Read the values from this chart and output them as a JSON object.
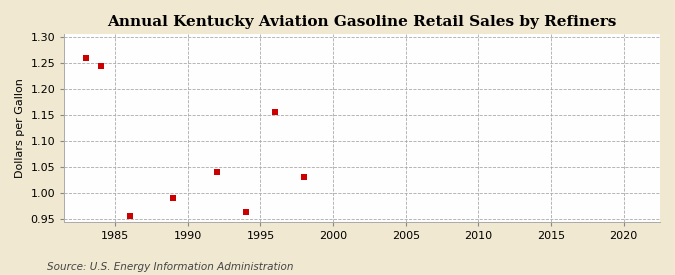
{
  "title": "Annual Kentucky Aviation Gasoline Retail Sales by Refiners",
  "ylabel": "Dollars per Gallon",
  "source": "Source: U.S. Energy Information Administration",
  "figure_bg": "#f0e8d0",
  "axes_bg": "#fefefe",
  "data_points": [
    [
      1983,
      1.26
    ],
    [
      1984,
      1.245
    ],
    [
      1986,
      0.956
    ],
    [
      1989,
      0.99
    ],
    [
      1992,
      1.04
    ],
    [
      1994,
      0.963
    ],
    [
      1996,
      1.155
    ],
    [
      1998,
      1.03
    ]
  ],
  "marker_color": "#cc0000",
  "marker": "s",
  "marker_size": 5,
  "xlim": [
    1981.5,
    2022.5
  ],
  "ylim": [
    0.945,
    1.305
  ],
  "xticks": [
    1985,
    1990,
    1995,
    2000,
    2005,
    2010,
    2015,
    2020
  ],
  "yticks": [
    0.95,
    1.0,
    1.05,
    1.1,
    1.15,
    1.2,
    1.25,
    1.3
  ],
  "grid_color": "#aaaaaa",
  "grid_style": "--",
  "grid_linewidth": 0.6,
  "title_fontsize": 11,
  "label_fontsize": 8,
  "tick_fontsize": 8,
  "source_fontsize": 7.5
}
